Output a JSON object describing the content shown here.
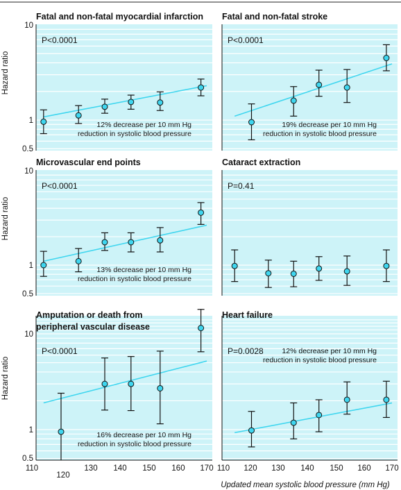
{
  "axes": {
    "ylabel": "Hazard ratio",
    "xlabel": "Updated mean systolic blood pressure (mm Hg)",
    "y_ticks": [
      "10",
      "1",
      "0.5"
    ],
    "x_ticks": [
      "110",
      "120",
      "130",
      "140",
      "150",
      "160",
      "170"
    ]
  },
  "colors": {
    "panel_background": "#cdf3f8",
    "gridline": "#ffffff",
    "fit_line": "#3fd6ef",
    "point_fill": "#3fd6ef",
    "errorbar": "#111111"
  },
  "chart_data": [
    {
      "type": "scatter",
      "title": "Fatal and non-fatal myocardial infarction",
      "p_value": "P<0.0001",
      "annotation": [
        "12% decrease per 10 mm Hg",
        "reduction in systolic blood pressure"
      ],
      "x": [
        114,
        126,
        135,
        144,
        154,
        168
      ],
      "y": [
        0.96,
        1.12,
        1.38,
        1.55,
        1.53,
        2.2
      ],
      "ci_low": [
        0.72,
        0.92,
        1.18,
        1.3,
        1.26,
        1.8
      ],
      "ci_high": [
        1.28,
        1.42,
        1.66,
        1.83,
        1.98,
        2.7
      ],
      "trend": {
        "x": [
          114,
          170
        ],
        "y": [
          1.08,
          2.3
        ]
      },
      "ylim": [
        0.5,
        10
      ],
      "xlim": [
        110,
        170
      ],
      "yscale": "log"
    },
    {
      "type": "scatter",
      "title": "Fatal and non-fatal stroke",
      "p_value": "P<0.0001",
      "annotation": [
        "19% decrease per 10 mm Hg",
        "reduction in systolic blood pressure"
      ],
      "x": [
        120,
        135,
        144,
        154,
        168
      ],
      "y": [
        0.95,
        1.6,
        2.35,
        2.2,
        4.5
      ],
      "ci_low": [
        0.62,
        1.1,
        1.78,
        1.53,
        3.3
      ],
      "ci_high": [
        1.48,
        2.25,
        3.35,
        3.4,
        6.2
      ],
      "trend": {
        "x": [
          114,
          170
        ],
        "y": [
          1.1,
          3.9
        ]
      },
      "ylim": [
        0.5,
        10
      ],
      "xlim": [
        110,
        170
      ],
      "yscale": "log"
    },
    {
      "type": "scatter",
      "title": "Microvascular end points",
      "p_value": "P<0.0001",
      "annotation": [
        "13% decrease per 10 mm Hg",
        "reduction in systolic blood pressure"
      ],
      "x": [
        114,
        126,
        135,
        144,
        154,
        168
      ],
      "y": [
        1.0,
        1.1,
        1.75,
        1.75,
        1.83,
        3.6
      ],
      "ci_low": [
        0.76,
        0.85,
        1.43,
        1.38,
        1.38,
        2.7
      ],
      "ci_high": [
        1.4,
        1.5,
        2.2,
        2.2,
        2.5,
        4.6
      ],
      "trend": {
        "x": [
          114,
          170
        ],
        "y": [
          1.1,
          2.65
        ]
      },
      "ylim": [
        0.5,
        10
      ],
      "xlim": [
        110,
        170
      ],
      "yscale": "log"
    },
    {
      "type": "scatter",
      "title": "Cataract extraction",
      "p_value": "P=0.41",
      "annotation": [],
      "x": [
        114,
        126,
        135,
        144,
        154,
        168
      ],
      "y": [
        0.98,
        0.82,
        0.81,
        0.92,
        0.86,
        0.98
      ],
      "ci_low": [
        0.67,
        0.58,
        0.59,
        0.69,
        0.61,
        0.67
      ],
      "ci_high": [
        1.45,
        1.13,
        1.1,
        1.23,
        1.25,
        1.45
      ],
      "ylim": [
        0.5,
        10
      ],
      "xlim": [
        110,
        170
      ],
      "yscale": "log"
    },
    {
      "type": "scatter",
      "title": [
        "Amputation or death from",
        "peripheral vascular disease"
      ],
      "p_value": "P<0.0001",
      "annotation": [
        "16% decrease per 10 mm Hg",
        "reduction in systolic blood pressure"
      ],
      "x": [
        120,
        135,
        144,
        154,
        168
      ],
      "y": [
        0.95,
        3.0,
        3.0,
        2.7,
        11.5
      ],
      "ci_low": [
        0.38,
        1.6,
        1.58,
        1.15,
        6.5
      ],
      "ci_high": [
        2.4,
        5.6,
        5.8,
        6.6,
        18.0
      ],
      "trend": {
        "x": [
          114,
          170
        ],
        "y": [
          1.9,
          5.2
        ]
      },
      "ylim": [
        0.5,
        15
      ],
      "xlim": [
        110,
        170
      ],
      "yscale": "log"
    },
    {
      "type": "scatter",
      "title": "Heart failure",
      "p_value": "P=0.0028",
      "annotation": [
        "12% decrease per 10 mm Hg",
        "reduction in systolic blood pressure"
      ],
      "x": [
        120,
        135,
        144,
        154,
        168
      ],
      "y": [
        0.98,
        1.18,
        1.42,
        2.05,
        2.05
      ],
      "ci_low": [
        0.66,
        0.8,
        0.95,
        1.45,
        1.34
      ],
      "ci_high": [
        1.55,
        1.9,
        2.05,
        3.15,
        3.2
      ],
      "trend": {
        "x": [
          114,
          170
        ],
        "y": [
          0.93,
          1.9
        ]
      },
      "ylim": [
        0.5,
        15
      ],
      "xlim": [
        110,
        170
      ],
      "yscale": "log"
    }
  ]
}
